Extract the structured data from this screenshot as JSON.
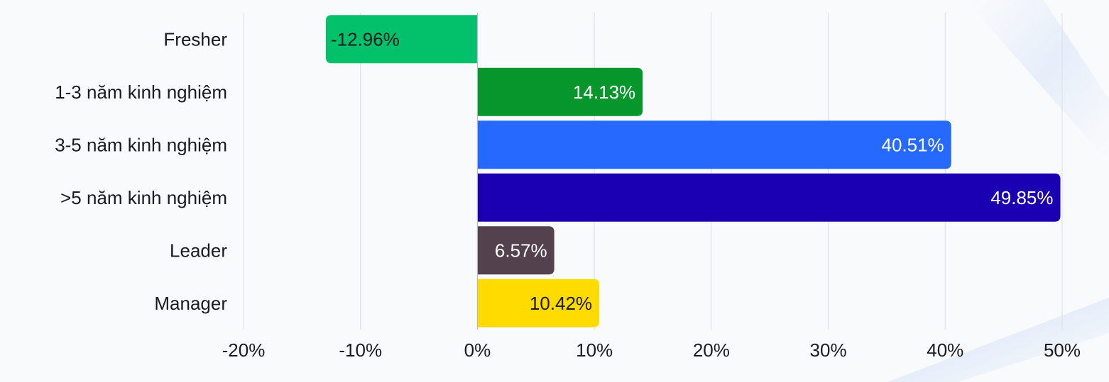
{
  "chart_data": {
    "type": "bar",
    "orientation": "horizontal",
    "categories": [
      "Fresher",
      "1-3 năm kinh nghiệm",
      "3-5 năm kinh nghiệm",
      ">5 năm kinh nghiệm",
      "Leader",
      "Manager"
    ],
    "values": [
      -12.96,
      14.13,
      40.51,
      49.85,
      6.57,
      10.42
    ],
    "value_labels": [
      "-12.96%",
      "14.13%",
      "40.51%",
      "49.85%",
      "6.57%",
      "10.42%"
    ],
    "colors": [
      "#02c16a",
      "#07962c",
      "#2669ff",
      "#1a00b2",
      "#53424e",
      "#ffdb00"
    ],
    "label_colors": [
      "#1b1b1f",
      "#ffffff",
      "#ffffff",
      "#ffffff",
      "#ffffff",
      "#1b1b1f"
    ],
    "xlim": [
      -20,
      50
    ],
    "x_ticks": [
      -20,
      -10,
      0,
      10,
      20,
      30,
      40,
      50
    ],
    "x_tick_labels": [
      "-20%",
      "-10%",
      "0%",
      "10%",
      "20%",
      "30%",
      "40%",
      "50%"
    ],
    "grid": "vertical",
    "legend": "none",
    "title": "",
    "xlabel": "",
    "ylabel": ""
  }
}
